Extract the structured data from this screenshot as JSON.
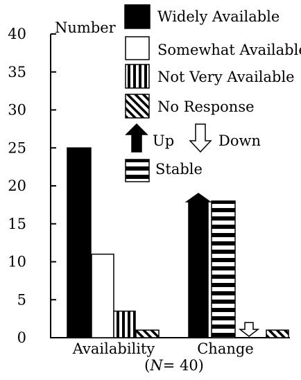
{
  "chart_data": {
    "type": "bar",
    "title": "",
    "xlabel": "",
    "ylabel": "Number",
    "note": "(N= 40)",
    "note_parts": {
      "open": "(",
      "italic": "N",
      "rest": "= 40)"
    },
    "ylim": [
      0,
      40
    ],
    "yticks": [
      "0",
      "5",
      "10",
      "15",
      "20",
      "25",
      "30",
      "35",
      "40"
    ],
    "ytick_values": [
      0,
      5,
      10,
      15,
      20,
      25,
      30,
      35,
      40
    ],
    "grid": false,
    "legend_placement": "top",
    "groups": [
      {
        "label": "Availability",
        "bars": [
          {
            "series": "Widely Available",
            "value": 25
          },
          {
            "series": "Somewhat Available",
            "value": 11
          },
          {
            "series": "Not Very Available",
            "value": 3.5
          },
          {
            "series": "No Response",
            "value": 1
          }
        ]
      },
      {
        "label": "Change",
        "bars": [
          {
            "series": "Up",
            "value": 19
          },
          {
            "series": "Stable",
            "value": 18
          },
          {
            "series": "Down",
            "value": 2
          },
          {
            "series": "No Response",
            "value": 1
          }
        ]
      }
    ],
    "legend": [
      {
        "name": "Widely Available",
        "pattern": "solid-black"
      },
      {
        "name": "Somewhat Available",
        "pattern": "white"
      },
      {
        "name": "Not Very Available",
        "pattern": "vertical-stripes"
      },
      {
        "name": "No Response",
        "pattern": "diagonal-stripes"
      },
      {
        "name": "Up",
        "pattern": "black-up-arrow"
      },
      {
        "name": "Down",
        "pattern": "white-down-arrow"
      },
      {
        "name": "Stable",
        "pattern": "horizontal-stripes"
      }
    ]
  }
}
